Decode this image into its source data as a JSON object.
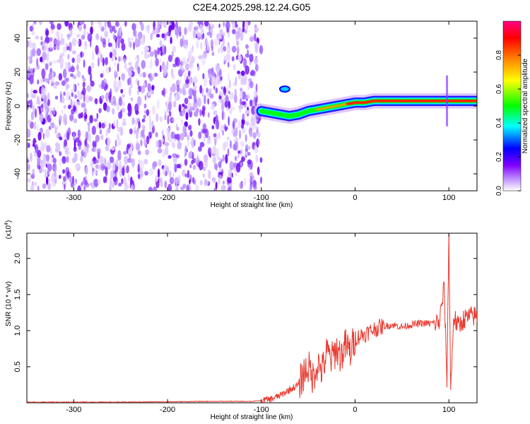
{
  "title": "C2E4.2025.298.12.24.G05",
  "chart_data": [
    {
      "type": "heatmap",
      "name": "spectrogram",
      "xlabel": "Height of straight line (km)",
      "ylabel": "Frequency (Hz)",
      "xlim": [
        -350,
        130
      ],
      "ylim": [
        -50,
        50
      ],
      "xticks": [
        "-300",
        "-200",
        "-100",
        "0",
        "100"
      ],
      "xtick_values": [
        -300,
        -200,
        -100,
        0,
        100
      ],
      "yticks": [
        "-40",
        "-20",
        "0",
        "20",
        "40"
      ],
      "ytick_values": [
        -40,
        -20,
        0,
        20,
        40
      ],
      "noise_region_x": [
        -350,
        -100
      ],
      "ridge": {
        "x": [
          -100,
          -90,
          -80,
          -70,
          -60,
          -50,
          -40,
          -30,
          -20,
          -10,
          0,
          10,
          20,
          40,
          60,
          80,
          100,
          120,
          130
        ],
        "frequency": [
          -3,
          -4,
          -5,
          -6,
          -5,
          -3,
          -2,
          -1,
          0,
          1,
          2,
          2,
          3,
          3,
          3,
          3,
          3,
          3,
          3
        ]
      }
    },
    {
      "type": "colorbar",
      "name": "colorbar",
      "label": "Normalized spectral amplitude",
      "range": [
        0,
        1
      ],
      "ticks": [
        "0.0",
        "0.2",
        "0.4",
        "0.6",
        "0.8"
      ],
      "tick_values": [
        0,
        0.2,
        0.4,
        0.6,
        0.8
      ],
      "colors": [
        "#ffffff",
        "#8000ff",
        "#0000ff",
        "#00ffff",
        "#00ff00",
        "#ffff00",
        "#ff8000",
        "#ff0000",
        "#ff0080"
      ]
    },
    {
      "type": "line",
      "name": "snr",
      "xlabel": "Height of straight line (km)",
      "ylabel": "SNR (10 * v/v)",
      "scale_label": "(x10",
      "scale_exp": "4",
      "xlim": [
        -350,
        130
      ],
      "ylim": [
        0,
        2.35
      ],
      "xticks": [
        "-300",
        "-200",
        "-100",
        "0",
        "100"
      ],
      "xtick_values": [
        -300,
        -200,
        -100,
        0,
        100
      ],
      "yticks": [
        "0.5",
        "1.0",
        "1.5",
        "2.0"
      ],
      "ytick_values": [
        0.5,
        1.0,
        1.5,
        2.0
      ],
      "color": "#e8392f",
      "series": [
        {
          "name": "SNR",
          "x": [
            -350,
            -300,
            -250,
            -200,
            -150,
            -110,
            -100,
            -90,
            -80,
            -70,
            -60,
            -55,
            -50,
            -45,
            -40,
            -35,
            -30,
            -25,
            -20,
            -15,
            -10,
            -5,
            0,
            10,
            20,
            30,
            40,
            50,
            60,
            70,
            80,
            90,
            95,
            98,
            100,
            102,
            105,
            110,
            115,
            120,
            125,
            130
          ],
          "y": [
            0.01,
            0.01,
            0.01,
            0.015,
            0.02,
            0.02,
            0.03,
            0.05,
            0.1,
            0.18,
            0.25,
            0.4,
            0.5,
            0.35,
            0.55,
            0.45,
            0.7,
            0.6,
            0.75,
            0.65,
            0.8,
            0.7,
            0.9,
            0.95,
            1.02,
            1.06,
            1.08,
            1.05,
            1.08,
            1.1,
            1.1,
            1.12,
            1.6,
            0.3,
            2.35,
            0.15,
            1.2,
            1.05,
            1.15,
            1.18,
            1.2,
            1.2
          ]
        }
      ]
    }
  ]
}
